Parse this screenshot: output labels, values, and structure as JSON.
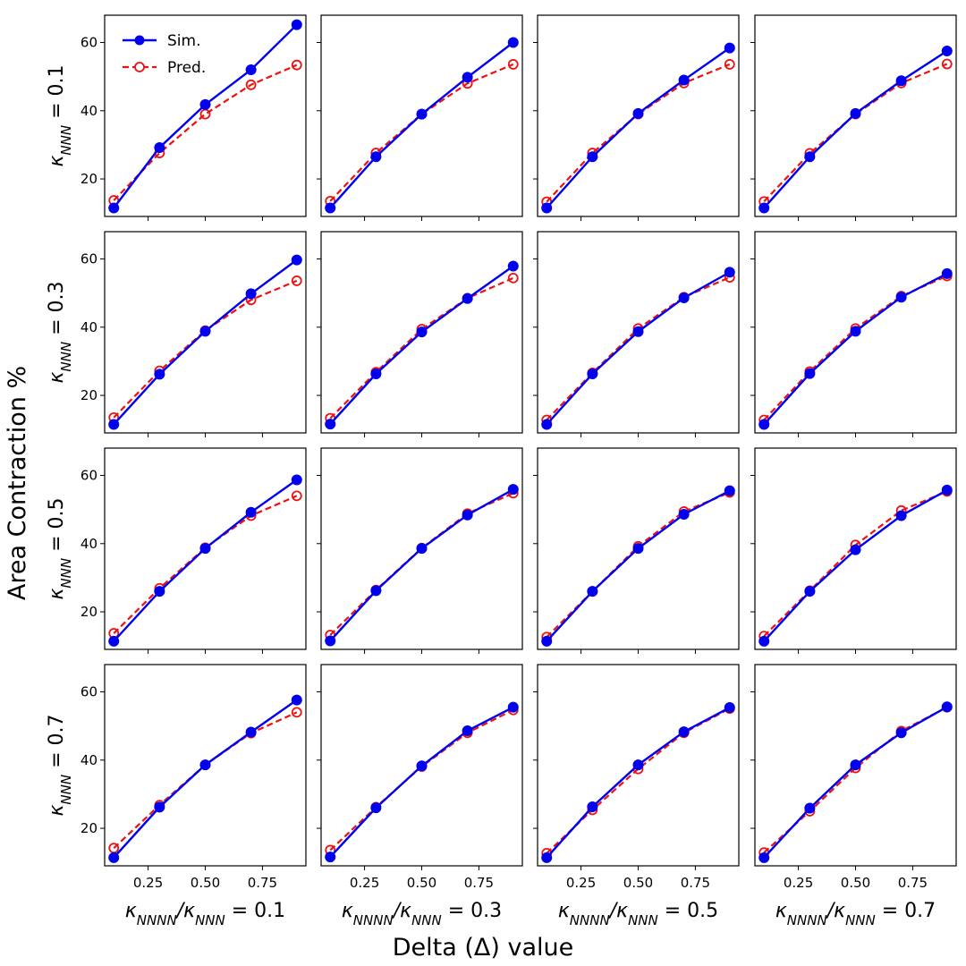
{
  "chart_data": {
    "type": "line",
    "grid": "4x4 subplots, shared x and y axes",
    "xlabel": "Delta (Δ) value",
    "ylabel": "Area Contraction %",
    "x": [
      0.1,
      0.3,
      0.5,
      0.7,
      0.9
    ],
    "xticks": [
      "0.25",
      "0.50",
      "0.75"
    ],
    "yticks": [
      "20",
      "40",
      "60"
    ],
    "ylim": [
      9,
      68
    ],
    "xlim": [
      0.06,
      0.94
    ],
    "legend": {
      "location": "upper-left of first panel",
      "sim": "Sim.",
      "pred": "Pred."
    },
    "colors": {
      "sim": "#0000ee",
      "pred": "#ee1111"
    },
    "rows": [
      {
        "kappa_nnn": "0.1",
        "label_main": "κ",
        "label_sub": "NNN",
        "label_tail": " = 0.1"
      },
      {
        "kappa_nnn": "0.3",
        "label_main": "κ",
        "label_sub": "NNN",
        "label_tail": " = 0.3"
      },
      {
        "kappa_nnn": "0.5",
        "label_main": "κ",
        "label_sub": "NNN",
        "label_tail": " = 0.5"
      },
      {
        "kappa_nnn": "0.7",
        "label_main": "κ",
        "label_sub": "NNN",
        "label_tail": " = 0.7"
      }
    ],
    "cols": [
      {
        "ratio": "0.1",
        "label_k1": "κ",
        "label_s1": "NNNN",
        "label_mid": "/κ",
        "label_s2": "NNN",
        "label_tail": " = 0.1"
      },
      {
        "ratio": "0.3",
        "label_k1": "κ",
        "label_s1": "NNNN",
        "label_mid": "/κ",
        "label_s2": "NNN",
        "label_tail": " = 0.3"
      },
      {
        "ratio": "0.5",
        "label_k1": "κ",
        "label_s1": "NNNN",
        "label_mid": "/κ",
        "label_s2": "NNN",
        "label_tail": " = 0.5"
      },
      {
        "ratio": "0.7",
        "label_k1": "κ",
        "label_s1": "NNNN",
        "label_mid": "/κ",
        "label_s2": "NNN",
        "label_tail": " = 0.7"
      }
    ],
    "panels": [
      [
        {
          "sim": [
            11.5,
            29.2,
            41.8,
            52.0,
            65.2
          ],
          "pred": [
            13.7,
            27.6,
            39.0,
            47.6,
            53.4
          ]
        },
        {
          "sim": [
            11.5,
            26.5,
            39.0,
            49.8,
            60.0
          ],
          "pred": [
            13.5,
            27.6,
            39.0,
            48.0,
            53.6
          ]
        },
        {
          "sim": [
            11.5,
            26.5,
            39.2,
            49.0,
            58.4
          ],
          "pred": [
            13.3,
            27.6,
            39.0,
            48.1,
            53.6
          ]
        },
        {
          "sim": [
            11.5,
            26.5,
            39.2,
            48.8,
            57.5
          ],
          "pred": [
            13.4,
            27.5,
            39.0,
            48.1,
            53.7
          ]
        }
      ],
      [
        {
          "sim": [
            11.5,
            26.2,
            38.8,
            49.8,
            59.7
          ],
          "pred": [
            13.5,
            27.2,
            39.0,
            48.0,
            53.6
          ]
        },
        {
          "sim": [
            11.6,
            26.3,
            38.6,
            48.4,
            57.9
          ],
          "pred": [
            13.3,
            26.8,
            39.4,
            48.5,
            54.4
          ]
        },
        {
          "sim": [
            11.5,
            26.3,
            38.7,
            48.6,
            56.1
          ],
          "pred": [
            12.8,
            26.6,
            39.6,
            48.8,
            54.6
          ]
        },
        {
          "sim": [
            11.5,
            26.4,
            38.8,
            48.8,
            55.7
          ],
          "pred": [
            12.8,
            27.0,
            39.6,
            49.1,
            55.0
          ]
        }
      ],
      [
        {
          "sim": [
            11.4,
            26.0,
            38.6,
            49.2,
            58.7
          ],
          "pred": [
            13.7,
            26.9,
            38.8,
            48.2,
            54.0
          ]
        },
        {
          "sim": [
            11.5,
            26.2,
            38.6,
            48.4,
            55.9
          ],
          "pred": [
            13.2,
            26.4,
            38.7,
            48.8,
            54.8
          ]
        },
        {
          "sim": [
            11.4,
            26.0,
            38.6,
            48.6,
            55.5
          ],
          "pred": [
            12.6,
            26.0,
            39.2,
            49.4,
            55.0
          ]
        },
        {
          "sim": [
            11.4,
            26.0,
            38.2,
            48.2,
            55.7
          ],
          "pred": [
            12.9,
            26.2,
            39.6,
            49.7,
            55.3
          ]
        }
      ],
      [
        {
          "sim": [
            11.4,
            26.2,
            38.6,
            48.2,
            57.6
          ],
          "pred": [
            14.2,
            26.8,
            38.6,
            47.9,
            54.0
          ]
        },
        {
          "sim": [
            11.6,
            26.0,
            38.3,
            48.6,
            55.5
          ],
          "pred": [
            13.6,
            26.2,
            38.1,
            48.0,
            54.7
          ]
        },
        {
          "sim": [
            11.4,
            26.3,
            38.6,
            48.3,
            55.4
          ],
          "pred": [
            12.7,
            25.4,
            37.4,
            48.0,
            55.1
          ]
        },
        {
          "sim": [
            11.4,
            25.9,
            38.6,
            48.0,
            55.6
          ],
          "pred": [
            12.9,
            25.0,
            37.7,
            48.5,
            55.5
          ]
        }
      ]
    ]
  }
}
